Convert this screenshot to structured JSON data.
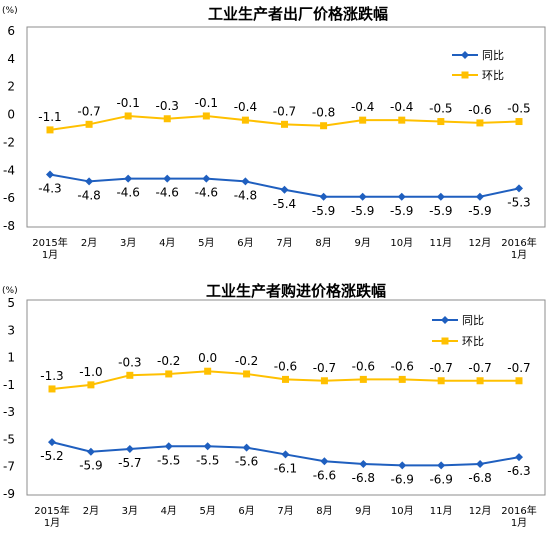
{
  "chart_data": [
    {
      "type": "line",
      "title": "工业生产者出厂价格涨跌幅",
      "unit_label": "(%)",
      "categories": [
        [
          "2015年",
          "1月"
        ],
        [
          "2月"
        ],
        [
          "3月"
        ],
        [
          "4月"
        ],
        [
          "5月"
        ],
        [
          "6月"
        ],
        [
          "7月"
        ],
        [
          "8月"
        ],
        [
          "9月"
        ],
        [
          "10月"
        ],
        [
          "11月"
        ],
        [
          "12月"
        ],
        [
          "2016年",
          "1月"
        ]
      ],
      "ylim": [
        -8,
        6
      ],
      "yticks": [
        6,
        4,
        2,
        0,
        -2,
        -4,
        -6,
        -8
      ],
      "grid": false,
      "legend_position": "top-right",
      "series": [
        {
          "name": "同比",
          "color": "#1f5fbf",
          "marker": "diamond",
          "values": [
            -4.3,
            -4.8,
            -4.6,
            -4.6,
            -4.6,
            -4.8,
            -5.4,
            -5.9,
            -5.9,
            -5.9,
            -5.9,
            -5.9,
            -5.3
          ],
          "labels": [
            "-4.3",
            "-4.8",
            "-4.6",
            "-4.6",
            "-4.6",
            "-4.8",
            "-5.4",
            "-5.9",
            "-5.9",
            "-5.9",
            "-5.9",
            "-5.9",
            "-5.3"
          ]
        },
        {
          "name": "环比",
          "color": "#ffc000",
          "marker": "square",
          "values": [
            -1.1,
            -0.7,
            -0.1,
            -0.3,
            -0.1,
            -0.4,
            -0.7,
            -0.8,
            -0.4,
            -0.4,
            -0.5,
            -0.6,
            -0.5
          ],
          "labels": [
            "-1.1",
            "-0.7",
            "-0.1",
            "-0.3",
            "-0.1",
            "-0.4",
            "-0.7",
            "-0.8",
            "-0.4",
            "-0.4",
            "-0.5",
            "-0.6",
            "-0.5"
          ]
        }
      ]
    },
    {
      "type": "line",
      "title": "工业生产者购进价格涨跌幅",
      "unit_label": "(%)",
      "categories": [
        [
          "2015年",
          "1月"
        ],
        [
          "2月"
        ],
        [
          "3月"
        ],
        [
          "4月"
        ],
        [
          "5月"
        ],
        [
          "6月"
        ],
        [
          "7月"
        ],
        [
          "8月"
        ],
        [
          "9月"
        ],
        [
          "10月"
        ],
        [
          "11月"
        ],
        [
          "12月"
        ],
        [
          "2016年",
          "1月"
        ]
      ],
      "ylim": [
        -9,
        5
      ],
      "yticks": [
        5,
        3,
        1,
        -1,
        -3,
        -5,
        -7,
        -9
      ],
      "grid": false,
      "legend_position": "top-right",
      "series": [
        {
          "name": "同比",
          "color": "#1f5fbf",
          "marker": "diamond",
          "values": [
            -5.2,
            -5.9,
            -5.7,
            -5.5,
            -5.5,
            -5.6,
            -6.1,
            -6.6,
            -6.8,
            -6.9,
            -6.9,
            -6.8,
            -6.3
          ],
          "labels": [
            "-5.2",
            "-5.9",
            "-5.7",
            "-5.5",
            "-5.5",
            "-5.6",
            "-6.1",
            "-6.6",
            "-6.8",
            "-6.9",
            "-6.9",
            "-6.8",
            "-6.3"
          ]
        },
        {
          "name": "环比",
          "color": "#ffc000",
          "marker": "square",
          "values": [
            -1.3,
            -1.0,
            -0.3,
            -0.2,
            0.0,
            -0.2,
            -0.6,
            -0.7,
            -0.6,
            -0.6,
            -0.7,
            -0.7,
            -0.7
          ],
          "labels": [
            "-1.3",
            "-1.0",
            "-0.3",
            "-0.2",
            "0.0",
            "-0.2",
            "-0.6",
            "-0.7",
            "-0.6",
            "-0.6",
            "-0.7",
            "-0.7",
            "-0.7"
          ]
        }
      ]
    }
  ]
}
